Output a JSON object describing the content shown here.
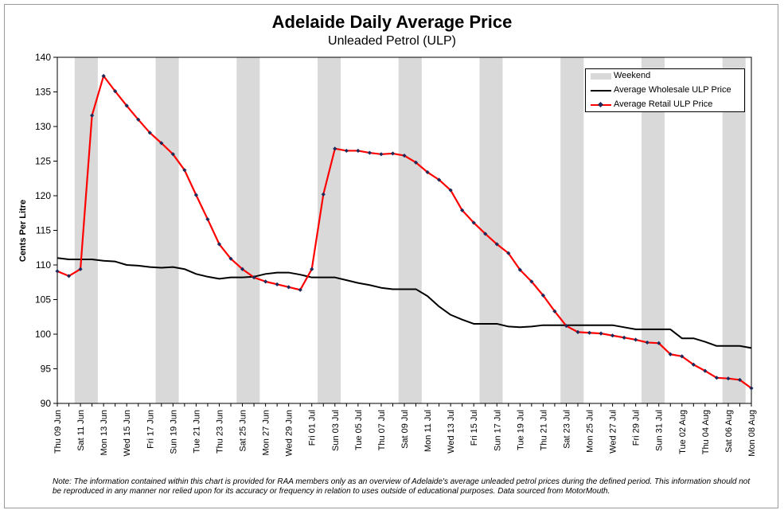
{
  "title": "Adelaide Daily Average Price",
  "subtitle": "Unleaded Petrol (ULP)",
  "note": "Note: The information contained within this chart is provided for RAA members only as an overview of Adelaide's average unleaded petrol prices during the defined period. This information should not be reproduced in any manner nor relied upon for its accuracy or frequency in relation to uses outside of educational purposes. Data sourced from MotorMouth.",
  "colors": {
    "weekend": "#d9d9d9",
    "wholesale": "#000000",
    "retail_line": "#ff0000",
    "retail_marker": "#1f2a5a"
  },
  "chart_data": {
    "type": "line",
    "ylabel": "Cents Per Litre",
    "xlabel": "",
    "ylim": [
      90,
      140
    ],
    "yticks": [
      90,
      95,
      100,
      105,
      110,
      115,
      120,
      125,
      130,
      135,
      140
    ],
    "x_start": "2011-06-09",
    "x_end": "2011-08-08",
    "x_tick_labels": [
      "Thu 09 Jun",
      "Sat 11 Jun",
      "Mon 13 Jun",
      "Wed 15 Jun",
      "Fri 17 Jun",
      "Sun 19 Jun",
      "Tue 21 Jun",
      "Thu 23 Jun",
      "Sat 25 Jun",
      "Mon 27 Jun",
      "Wed 29 Jun",
      "Fri 01 Jul",
      "Sun 03 Jul",
      "Tue 05 Jul",
      "Thu 07 Jul",
      "Sat 09 Jul",
      "Mon 11 Jul",
      "Wed 13 Jul",
      "Fri 15 Jul",
      "Sun 17 Jul",
      "Tue 19 Jul",
      "Thu 21 Jul",
      "Sat 23 Jul",
      "Mon 25 Jul",
      "Wed 27 Jul",
      "Fri 29 Jul",
      "Sun 31 Jul",
      "Tue 02 Aug",
      "Thu 04 Aug",
      "Sat 06 Aug",
      "Mon 08 Aug"
    ],
    "weekend_bands": [
      [
        "2011-06-11",
        "2011-06-12"
      ],
      [
        "2011-06-18",
        "2011-06-19"
      ],
      [
        "2011-06-25",
        "2011-06-26"
      ],
      [
        "2011-07-02",
        "2011-07-03"
      ],
      [
        "2011-07-09",
        "2011-07-10"
      ],
      [
        "2011-07-16",
        "2011-07-17"
      ],
      [
        "2011-07-23",
        "2011-07-24"
      ],
      [
        "2011-07-30",
        "2011-07-31"
      ],
      [
        "2011-08-06",
        "2011-08-07"
      ]
    ],
    "legend": {
      "position": "top-right",
      "entries": [
        "Weekend",
        "Average Wholesale ULP Price",
        "Average Retail ULP Price"
      ]
    },
    "series": [
      {
        "name": "Average Wholesale ULP Price",
        "values": [
          [
            "2011-06-09",
            111.0
          ],
          [
            "2011-06-10",
            110.8
          ],
          [
            "2011-06-11",
            110.8
          ],
          [
            "2011-06-12",
            110.8
          ],
          [
            "2011-06-13",
            110.6
          ],
          [
            "2011-06-14",
            110.5
          ],
          [
            "2011-06-15",
            110.0
          ],
          [
            "2011-06-16",
            109.9
          ],
          [
            "2011-06-17",
            109.7
          ],
          [
            "2011-06-18",
            109.6
          ],
          [
            "2011-06-19",
            109.7
          ],
          [
            "2011-06-20",
            109.4
          ],
          [
            "2011-06-21",
            108.7
          ],
          [
            "2011-06-22",
            108.3
          ],
          [
            "2011-06-23",
            108.0
          ],
          [
            "2011-06-24",
            108.2
          ],
          [
            "2011-06-25",
            108.2
          ],
          [
            "2011-06-26",
            108.3
          ],
          [
            "2011-06-27",
            108.7
          ],
          [
            "2011-06-28",
            108.9
          ],
          [
            "2011-06-29",
            108.9
          ],
          [
            "2011-06-30",
            108.6
          ],
          [
            "2011-07-01",
            108.2
          ],
          [
            "2011-07-02",
            108.2
          ],
          [
            "2011-07-03",
            108.2
          ],
          [
            "2011-07-04",
            107.8
          ],
          [
            "2011-07-05",
            107.4
          ],
          [
            "2011-07-06",
            107.1
          ],
          [
            "2011-07-07",
            106.7
          ],
          [
            "2011-07-08",
            106.5
          ],
          [
            "2011-07-09",
            106.5
          ],
          [
            "2011-07-10",
            106.5
          ],
          [
            "2011-07-11",
            105.5
          ],
          [
            "2011-07-12",
            104.0
          ],
          [
            "2011-07-13",
            102.8
          ],
          [
            "2011-07-14",
            102.1
          ],
          [
            "2011-07-15",
            101.5
          ],
          [
            "2011-07-16",
            101.5
          ],
          [
            "2011-07-17",
            101.5
          ],
          [
            "2011-07-18",
            101.1
          ],
          [
            "2011-07-19",
            101.0
          ],
          [
            "2011-07-20",
            101.1
          ],
          [
            "2011-07-21",
            101.3
          ],
          [
            "2011-07-22",
            101.3
          ],
          [
            "2011-07-23",
            101.3
          ],
          [
            "2011-07-24",
            101.3
          ],
          [
            "2011-07-25",
            101.3
          ],
          [
            "2011-07-26",
            101.3
          ],
          [
            "2011-07-27",
            101.3
          ],
          [
            "2011-07-28",
            101.0
          ],
          [
            "2011-07-29",
            100.7
          ],
          [
            "2011-07-30",
            100.7
          ],
          [
            "2011-07-31",
            100.7
          ],
          [
            "2011-08-01",
            100.7
          ],
          [
            "2011-08-02",
            99.4
          ],
          [
            "2011-08-03",
            99.4
          ],
          [
            "2011-08-04",
            98.9
          ],
          [
            "2011-08-05",
            98.3
          ],
          [
            "2011-08-06",
            98.3
          ],
          [
            "2011-08-07",
            98.3
          ],
          [
            "2011-08-08",
            98.0
          ]
        ]
      },
      {
        "name": "Average Retail ULP Price",
        "values": [
          [
            "2011-06-09",
            109.1
          ],
          [
            "2011-06-10",
            108.4
          ],
          [
            "2011-06-11",
            109.4
          ],
          [
            "2011-06-12",
            131.6
          ],
          [
            "2011-06-13",
            137.3
          ],
          [
            "2011-06-14",
            135.1
          ],
          [
            "2011-06-15",
            133.0
          ],
          [
            "2011-06-16",
            131.0
          ],
          [
            "2011-06-17",
            129.1
          ],
          [
            "2011-06-18",
            127.6
          ],
          [
            "2011-06-19",
            126.0
          ],
          [
            "2011-06-20",
            123.7
          ],
          [
            "2011-06-21",
            120.1
          ],
          [
            "2011-06-22",
            116.6
          ],
          [
            "2011-06-23",
            113.0
          ],
          [
            "2011-06-24",
            110.9
          ],
          [
            "2011-06-25",
            109.4
          ],
          [
            "2011-06-26",
            108.2
          ],
          [
            "2011-06-27",
            107.6
          ],
          [
            "2011-06-28",
            107.2
          ],
          [
            "2011-06-29",
            106.8
          ],
          [
            "2011-06-30",
            106.4
          ],
          [
            "2011-07-01",
            109.4
          ],
          [
            "2011-07-02",
            120.2
          ],
          [
            "2011-07-03",
            126.8
          ],
          [
            "2011-07-04",
            126.5
          ],
          [
            "2011-07-05",
            126.5
          ],
          [
            "2011-07-06",
            126.2
          ],
          [
            "2011-07-07",
            126.0
          ],
          [
            "2011-07-08",
            126.1
          ],
          [
            "2011-07-09",
            125.8
          ],
          [
            "2011-07-10",
            124.8
          ],
          [
            "2011-07-11",
            123.4
          ],
          [
            "2011-07-12",
            122.3
          ],
          [
            "2011-07-13",
            120.8
          ],
          [
            "2011-07-14",
            117.9
          ],
          [
            "2011-07-15",
            116.1
          ],
          [
            "2011-07-16",
            114.5
          ],
          [
            "2011-07-17",
            113.0
          ],
          [
            "2011-07-18",
            111.7
          ],
          [
            "2011-07-19",
            109.3
          ],
          [
            "2011-07-20",
            107.6
          ],
          [
            "2011-07-21",
            105.6
          ],
          [
            "2011-07-22",
            103.3
          ],
          [
            "2011-07-23",
            101.2
          ],
          [
            "2011-07-24",
            100.3
          ],
          [
            "2011-07-25",
            100.2
          ],
          [
            "2011-07-26",
            100.1
          ],
          [
            "2011-07-27",
            99.8
          ],
          [
            "2011-07-28",
            99.5
          ],
          [
            "2011-07-29",
            99.2
          ],
          [
            "2011-07-30",
            98.8
          ],
          [
            "2011-07-31",
            98.7
          ],
          [
            "2011-08-01",
            97.1
          ],
          [
            "2011-08-02",
            96.8
          ],
          [
            "2011-08-03",
            95.6
          ],
          [
            "2011-08-04",
            94.7
          ],
          [
            "2011-08-05",
            93.7
          ],
          [
            "2011-08-06",
            93.6
          ],
          [
            "2011-08-07",
            93.4
          ],
          [
            "2011-08-08",
            92.2
          ]
        ]
      }
    ]
  }
}
